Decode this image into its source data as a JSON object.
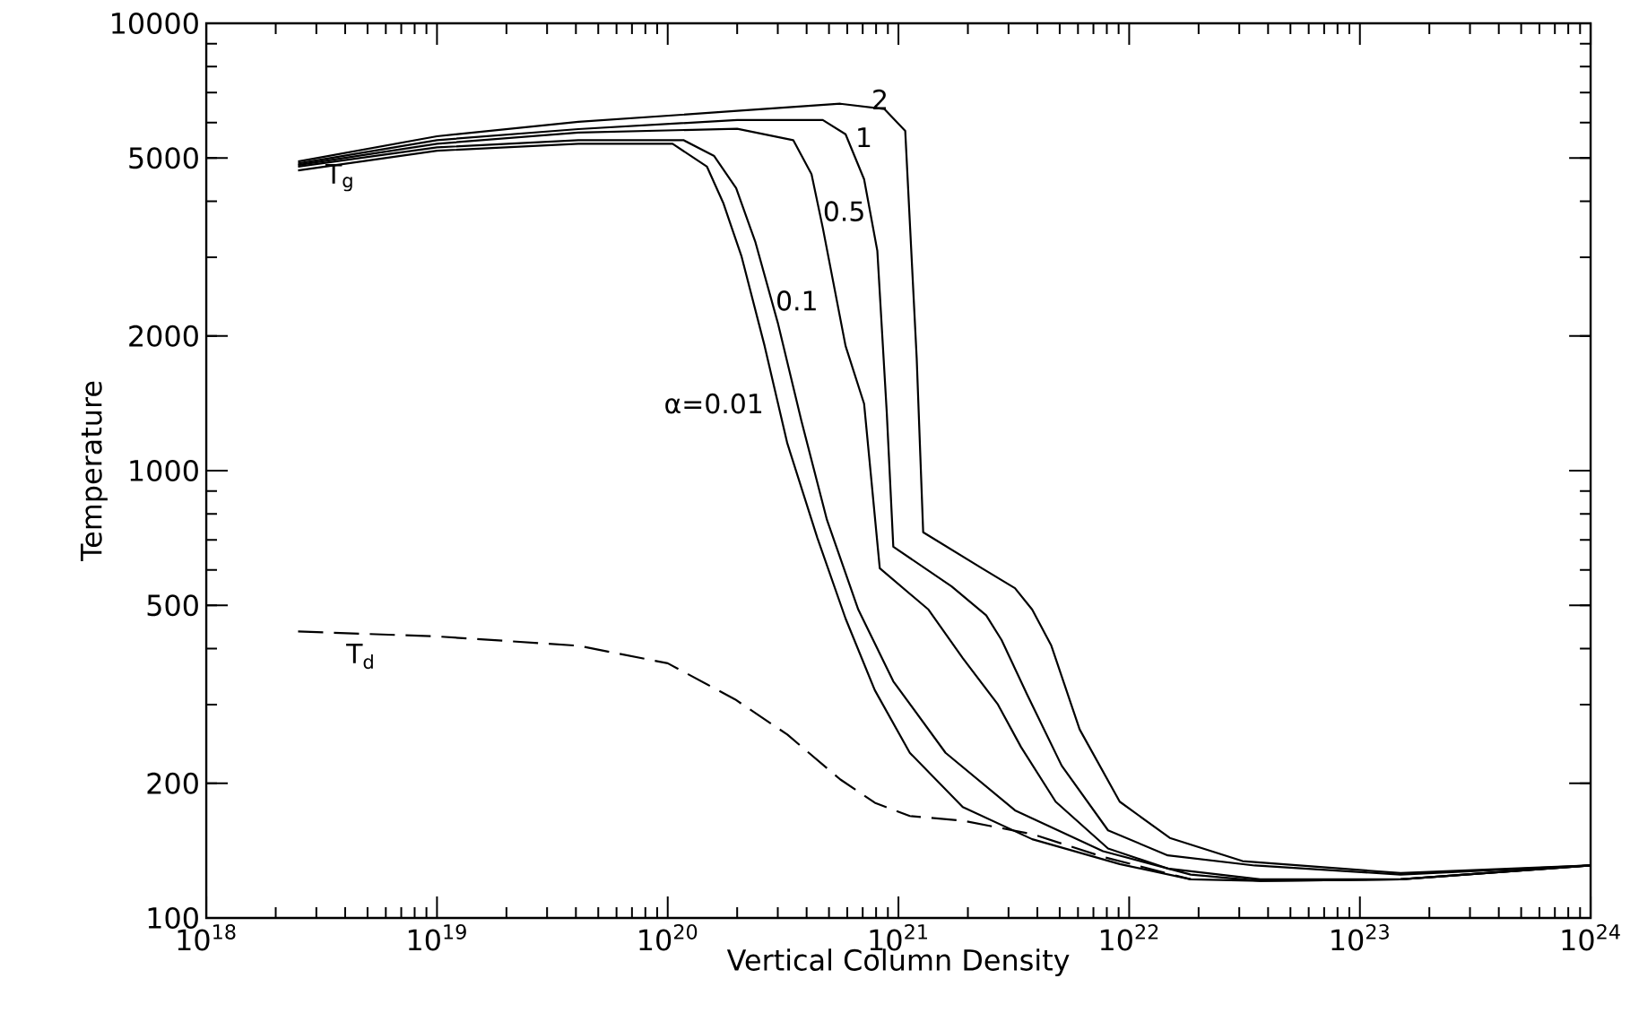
{
  "chart_data": {
    "type": "line",
    "xlabel": "Vertical Column Density",
    "ylabel": "Temperature",
    "log": "xy",
    "grid": false,
    "marker": "none",
    "xlim": [
      1e+18,
      1e+24
    ],
    "ylim": [
      100,
      10000
    ],
    "xticks": [
      {
        "value": 1e+18,
        "label": "10$^{18}$"
      },
      {
        "value": 1e+19,
        "label": "10$^{19}$"
      },
      {
        "value": 1e+20,
        "label": "10$^{20}$"
      },
      {
        "value": 1e+21,
        "label": "10$^{21}$"
      },
      {
        "value": 1e+22,
        "label": "10$^{22}$"
      },
      {
        "value": 1e+23,
        "label": "10$^{23}$"
      },
      {
        "value": 1e+24,
        "label": "10$^{24}$"
      }
    ],
    "yticks": [
      100,
      200,
      500,
      1000,
      2000,
      5000,
      10000
    ],
    "annotations": [
      "T$_{g}$"
    ],
    "series": [
      {
        "name": "α=0.01",
        "color": "#000000",
        "line_style": "solid",
        "x": [
          2.5e+18,
          1e+19,
          4.1e+19,
          1.05e+20,
          1.48e+20,
          1.74e+20,
          2.09e+20,
          2.63e+20,
          3.3e+20,
          4.45e+20,
          5.9e+20,
          7.9e+20,
          1.12e+21,
          1.9e+21,
          3.8e+21,
          9.1e+21,
          1.85e+22,
          3.7e+22,
          1.5e+23,
          1e+24
        ],
        "values": [
          4690,
          5190,
          5380,
          5380,
          4780,
          3970,
          3010,
          1900,
          1150,
          708,
          467,
          323,
          234,
          177,
          150,
          132,
          122,
          121,
          122,
          131
        ]
      },
      {
        "name": "0.1",
        "color": "#000000",
        "line_style": "solid",
        "x": [
          2.5e+18,
          1e+19,
          4.1e+19,
          1.17e+20,
          1.59e+20,
          1.98e+20,
          2.4e+20,
          3e+20,
          3.8e+20,
          4.9e+20,
          6.7e+20,
          9.5e+20,
          1.6e+21,
          3.2e+21,
          7.7e+21,
          1.85e+22,
          3.7e+22,
          1.5e+23,
          1e+24
        ],
        "values": [
          4780,
          5280,
          5480,
          5480,
          5050,
          4280,
          3240,
          2140,
          1290,
          776,
          489,
          338,
          234,
          174,
          141,
          125,
          121,
          122,
          131
        ]
      },
      {
        "name": "0.5",
        "color": "#000000",
        "line_style": "solid",
        "x": [
          2.5e+18,
          1e+19,
          4.1e+19,
          2e+20,
          3.5e+20,
          4.2e+20,
          4.7e+20,
          5.9e+20,
          7.1e+20,
          8.3e+20,
          1.35e+21,
          1.9e+21,
          2.7e+21,
          3.4e+21,
          4.8e+21,
          8.1e+21,
          1.47e+22,
          3.7e+22,
          1.5e+23,
          1e+24
        ],
        "values": [
          4820,
          5380,
          5700,
          5810,
          5480,
          4600,
          3490,
          1900,
          1410,
          605,
          489,
          381,
          300,
          241,
          182,
          143,
          129,
          122,
          122,
          131
        ]
      },
      {
        "name": "1",
        "color": "#000000",
        "line_style": "solid",
        "x": [
          2.5e+18,
          1e+19,
          4.1e+19,
          2e+20,
          4.7e+20,
          5.9e+20,
          7.1e+20,
          8.1e+20,
          8.9e+20,
          9.5e+20,
          1.7e+21,
          2.4e+21,
          2.8e+21,
          3.6e+21,
          5.1e+21,
          8.1e+21,
          1.47e+22,
          3.5e+22,
          1.5e+23,
          1e+24
        ],
        "values": [
          4860,
          5480,
          5800,
          6080,
          6080,
          5650,
          4480,
          3100,
          1350,
          676,
          551,
          475,
          418,
          317,
          219,
          157,
          138,
          131,
          125,
          131
        ]
      },
      {
        "name": "2",
        "color": "#000000",
        "line_style": "solid",
        "x": [
          2.5e+18,
          1e+19,
          4.1e+19,
          2e+20,
          5.6e+20,
          8.7e+20,
          1.07e+21,
          1.2e+21,
          1.28e+21,
          2.3e+21,
          3.2e+21,
          3.8e+21,
          4.6e+21,
          6.1e+21,
          9.1e+21,
          1.5e+22,
          3.1e+22,
          1.5e+23,
          1e+24
        ],
        "values": [
          4910,
          5590,
          6020,
          6370,
          6610,
          6430,
          5750,
          1780,
          728,
          605,
          546,
          489,
          406,
          264,
          182,
          151,
          134,
          126,
          131
        ]
      },
      {
        "name": "T$_{d}$",
        "color": "#000000",
        "line_style": "dashed",
        "x": [
          2.5e+18,
          1e+19,
          4.1e+19,
          1e+20,
          1.96e+20,
          3.3e+20,
          5.6e+20,
          7.9e+20,
          1.12e+21,
          1.9e+21,
          3.8e+21,
          7.7e+21,
          1.85e+22
        ],
        "values": [
          437,
          426,
          406,
          371,
          308,
          257,
          204,
          181,
          169,
          165,
          154,
          137,
          122
        ]
      }
    ]
  }
}
